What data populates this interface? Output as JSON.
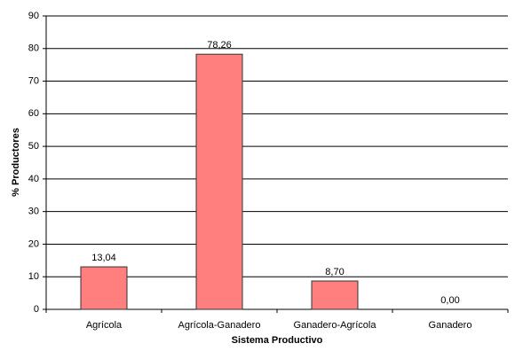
{
  "chart_data": {
    "type": "bar",
    "x_label": "Sistema Productivo",
    "y_label": "% Productores",
    "categories": [
      "Agrícola",
      "Agrícola-Ganadero",
      "Ganadero-Agrícola",
      "Ganadero"
    ],
    "values": [
      13.04,
      78.26,
      8.7,
      0.0
    ],
    "value_labels": [
      "13,04",
      "78,26",
      "8,70",
      "0,00"
    ],
    "color": "#ff7f7f",
    "ylim": [
      0,
      90
    ],
    "yticks": [
      0,
      10,
      20,
      30,
      40,
      50,
      60,
      70,
      80,
      90
    ],
    "grid": true
  }
}
